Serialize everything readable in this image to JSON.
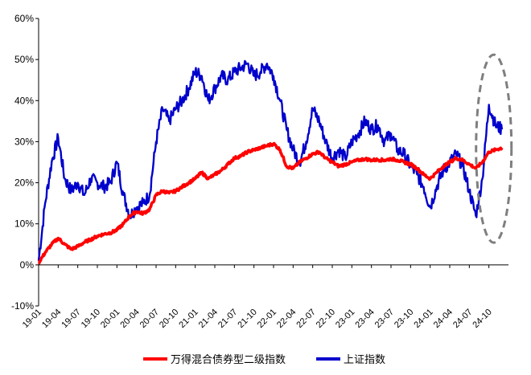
{
  "chart_data": {
    "type": "line",
    "title": "",
    "xlabel": "",
    "ylabel": "",
    "ylim": [
      -10,
      60
    ],
    "yticks": [
      "-10%",
      "0%",
      "10%",
      "20%",
      "30%",
      "40%",
      "50%",
      "60%"
    ],
    "yticks_values": [
      -10,
      0,
      10,
      20,
      30,
      40,
      50,
      60
    ],
    "xticks": [
      "19-01",
      "19-04",
      "19-07",
      "19-10",
      "20-01",
      "20-04",
      "20-07",
      "20-10",
      "21-01",
      "21-04",
      "21-07",
      "21-10",
      "22-01",
      "22-04",
      "22-07",
      "22-10",
      "23-01",
      "23-04",
      "23-07",
      "23-10",
      "24-01",
      "24-04",
      "24-07",
      "24-10"
    ],
    "grid": false,
    "legend_position": "bottom",
    "highlight": "dashed-ellipse around the most recent period (24-09 to 24-12)",
    "series": [
      {
        "name": "万得混合债券型二级指数",
        "color": "#ff0000",
        "x": [
          "19-01",
          "19-02",
          "19-03",
          "19-04",
          "19-05",
          "19-06",
          "19-07",
          "19-08",
          "19-09",
          "19-10",
          "19-11",
          "19-12",
          "20-01",
          "20-02",
          "20-03",
          "20-04",
          "20-05",
          "20-06",
          "20-07",
          "20-08",
          "20-09",
          "20-10",
          "20-11",
          "20-12",
          "21-01",
          "21-02",
          "21-03",
          "21-04",
          "21-05",
          "21-06",
          "21-07",
          "21-08",
          "21-09",
          "21-10",
          "21-11",
          "21-12",
          "22-01",
          "22-02",
          "22-03",
          "22-04",
          "22-05",
          "22-06",
          "22-07",
          "22-08",
          "22-09",
          "22-10",
          "22-11",
          "22-12",
          "23-01",
          "23-02",
          "23-03",
          "23-04",
          "23-05",
          "23-06",
          "23-07",
          "23-08",
          "23-09",
          "23-10",
          "23-11",
          "23-12",
          "24-01",
          "24-02",
          "24-03",
          "24-04",
          "24-05",
          "24-06",
          "24-07",
          "24-08",
          "24-09",
          "24-10",
          "24-11",
          "24-12"
        ],
        "values": [
          0.5,
          3,
          5,
          6.5,
          5,
          3.8,
          4.5,
          5.5,
          6.2,
          7,
          7.5,
          7.8,
          8.5,
          10,
          12,
          13,
          12.5,
          13.5,
          17,
          18,
          17.5,
          18,
          19,
          20,
          21,
          22.5,
          21,
          22,
          23,
          24.5,
          26,
          26.5,
          27.5,
          28,
          28.5,
          29,
          29.5,
          28,
          24,
          23.5,
          25,
          26,
          27,
          27.5,
          26,
          25,
          24,
          24.5,
          25,
          25.5,
          25.8,
          25.5,
          25.6,
          25.5,
          25.8,
          25.5,
          25,
          24.5,
          23.5,
          22,
          21,
          22.5,
          24,
          25,
          26,
          25.5,
          24.5,
          23.5,
          25,
          27.5,
          28,
          28.5
        ]
      },
      {
        "name": "上证指数",
        "color": "#0000cc",
        "x": [
          "19-01",
          "19-02",
          "19-03",
          "19-04",
          "19-05",
          "19-06",
          "19-07",
          "19-08",
          "19-09",
          "19-10",
          "19-11",
          "19-12",
          "20-01",
          "20-02",
          "20-03",
          "20-04",
          "20-05",
          "20-06",
          "20-07",
          "20-08",
          "20-09",
          "20-10",
          "20-11",
          "20-12",
          "21-01",
          "21-02",
          "21-03",
          "21-04",
          "21-05",
          "21-06",
          "21-07",
          "21-08",
          "21-09",
          "21-10",
          "21-11",
          "21-12",
          "22-01",
          "22-02",
          "22-03",
          "22-04",
          "22-05",
          "22-06",
          "22-07",
          "22-08",
          "22-09",
          "22-10",
          "22-11",
          "22-12",
          "23-01",
          "23-02",
          "23-03",
          "23-04",
          "23-05",
          "23-06",
          "23-07",
          "23-08",
          "23-09",
          "23-10",
          "23-11",
          "23-12",
          "24-01",
          "24-02",
          "24-03",
          "24-04",
          "24-05",
          "24-06",
          "24-07",
          "24-08",
          "24-09",
          "24-10",
          "24-11",
          "24-12"
        ],
        "values": [
          1,
          15,
          25,
          31,
          21,
          18,
          20,
          17,
          21,
          20,
          19,
          20,
          25,
          17,
          12,
          14,
          15,
          17,
          30,
          38,
          35,
          38,
          40,
          43,
          47,
          46,
          40,
          43,
          46,
          45,
          47,
          48,
          49,
          46,
          47,
          49,
          46,
          40,
          33,
          28,
          25,
          30,
          38,
          35,
          30,
          26,
          28,
          26,
          30,
          32,
          35,
          33,
          34,
          30,
          32,
          28,
          27,
          24,
          22,
          19,
          14,
          19,
          23,
          25,
          27,
          24,
          18,
          12,
          21,
          39,
          34,
          33
        ]
      }
    ]
  }
}
